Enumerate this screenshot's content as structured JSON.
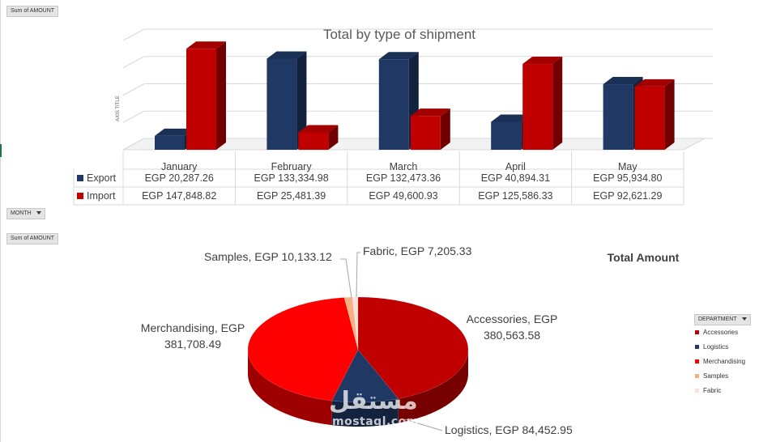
{
  "field_buttons": {
    "sum_top": "Sum of AMOUNT",
    "month": "MONTH",
    "sum_bottom": "Sum of AMOUNT",
    "department": "DEPARTMENT"
  },
  "colors": {
    "export": "#1f3864",
    "import": "#c00000"
  },
  "chart_data": [
    {
      "type": "bar",
      "title": "Total by type of shipment",
      "ylabel": "AXIS TITLE",
      "xlabel": "",
      "categories": [
        "January",
        "February",
        "March",
        "April",
        "May"
      ],
      "series": [
        {
          "name": "Export",
          "color": "#1f3864",
          "values": [
            20287.26,
            133334.98,
            132473.36,
            40894.31,
            95934.8
          ],
          "labels": [
            "EGP 20,287.26",
            "EGP 133,334.98",
            "EGP 132,473.36",
            "EGP 40,894.31",
            "EGP 95,934.80"
          ]
        },
        {
          "name": "Import",
          "color": "#c00000",
          "values": [
            147848.82,
            25481.39,
            49600.93,
            125586.33,
            92621.29
          ],
          "labels": [
            "EGP 147,848.82",
            "EGP 25,481.39",
            "EGP 49,600.93",
            "EGP 125,586.33",
            "EGP 92,621.29"
          ]
        }
      ],
      "ylim": [
        0,
        160000
      ],
      "grid": true,
      "data_table": true
    },
    {
      "type": "pie",
      "title": "Total Amount",
      "slices": [
        {
          "name": "Accessories",
          "value": 380563.58,
          "color": "#c00000",
          "label": "Accessories, EGP 380,563.58"
        },
        {
          "name": "Logistics",
          "value": 84452.95,
          "color": "#1f3864",
          "label": "Logistics, EGP 84,452.95"
        },
        {
          "name": "Merchandising",
          "value": 381708.49,
          "color": "#ff0000",
          "label": "Merchandising, EGP 381,708.49"
        },
        {
          "name": "Samples",
          "value": 10133.12,
          "color": "#f4b183",
          "label": "Samples, EGP 10,133.12"
        },
        {
          "name": "Fabric",
          "value": 7205.33,
          "color": "#fbe0dc",
          "label": "Fabric, EGP 7,205.33"
        }
      ],
      "legend_title": "DEPARTMENT",
      "legend": "right"
    }
  ],
  "watermark": {
    "arabic": "مستقل",
    "latin": "mostaql.com"
  }
}
